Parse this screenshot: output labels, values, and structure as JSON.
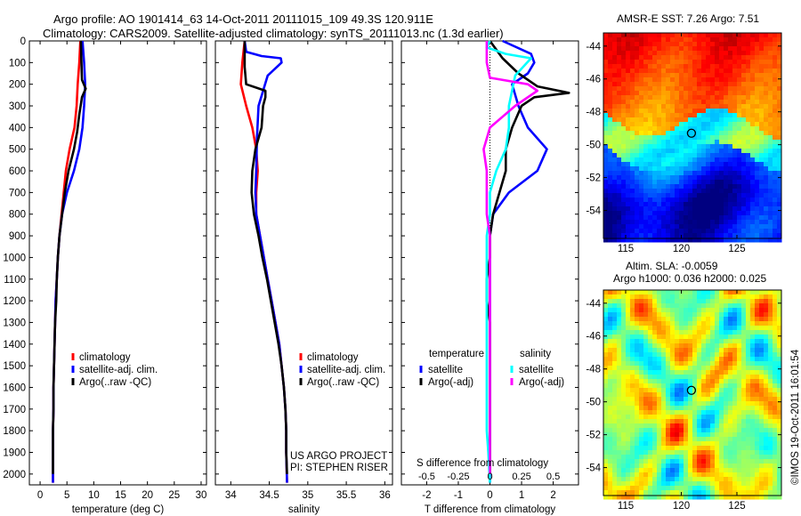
{
  "header": {
    "line1": "Argo profile: AO 1901414_63 14-Oct-2011 20111015_109 49.3S 120.911E",
    "line2": "Climatology: CARS2009. Satellite-adjusted climatology: synTS_20111013.nc (1.3d earlier)"
  },
  "map_top": {
    "title": "AMSR-E SST: 7.26 Argo: 7.51",
    "yticks": [
      "-44",
      "-46",
      "-48",
      "-50",
      "-52",
      "-54"
    ],
    "xticks": [
      "115",
      "120",
      "125"
    ]
  },
  "map_bottom": {
    "title_line1": "Altim. SLA: -0.0059",
    "title_line2": "Argo h1000: 0.036 h2000: 0.025",
    "yticks": [
      "-44",
      "-46",
      "-48",
      "-50",
      "-52",
      "-54"
    ],
    "xticks": [
      "115",
      "120",
      "125"
    ]
  },
  "side_stamp": "©IMOS 19-Oct-2011 16:01:54",
  "colors": {
    "climatology": "#ff0000",
    "satellite_adj": "#0000ff",
    "argo": "#000000",
    "satellite_s": "#00ffff",
    "argo_s": "#ff00ff"
  },
  "chart_data": [
    {
      "type": "line",
      "xlabel": "temperature (deg C)",
      "ylabel": "",
      "xlim": [
        -2,
        31
      ],
      "ylim": [
        2050,
        0
      ],
      "xticks": [
        0,
        5,
        10,
        15,
        20,
        25,
        30
      ],
      "yticks": [
        0,
        100,
        200,
        300,
        400,
        500,
        600,
        700,
        800,
        900,
        1000,
        1100,
        1200,
        1300,
        1400,
        1500,
        1600,
        1700,
        1800,
        1900,
        2000
      ],
      "legend": [
        "climatology",
        "satellite-adj. clim.",
        "Argo(..raw -QC)"
      ],
      "series": [
        {
          "name": "climatology",
          "color": "#ff0000",
          "points": [
            [
              7.5,
              0
            ],
            [
              7.3,
              100
            ],
            [
              7.0,
              200
            ],
            [
              6.8,
              300
            ],
            [
              6.4,
              400
            ],
            [
              5.5,
              500
            ],
            [
              4.8,
              600
            ],
            [
              4.4,
              700
            ],
            [
              4.0,
              800
            ],
            [
              3.6,
              900
            ],
            [
              3.3,
              1000
            ],
            [
              3.1,
              1100
            ],
            [
              2.9,
              1200
            ],
            [
              2.8,
              1300
            ],
            [
              2.7,
              1400
            ],
            [
              2.6,
              1500
            ],
            [
              2.5,
              1600
            ],
            [
              2.5,
              1700
            ],
            [
              2.4,
              1800
            ],
            [
              2.4,
              1900
            ],
            [
              2.4,
              2040
            ]
          ]
        },
        {
          "name": "satellite-adj. clim.",
          "color": "#0000ff",
          "points": [
            [
              7.9,
              0
            ],
            [
              8.2,
              100
            ],
            [
              8.4,
              200
            ],
            [
              8.2,
              300
            ],
            [
              7.9,
              400
            ],
            [
              7.3,
              500
            ],
            [
              6.3,
              600
            ],
            [
              5.0,
              700
            ],
            [
              4.1,
              800
            ],
            [
              3.6,
              900
            ],
            [
              3.3,
              1000
            ],
            [
              3.1,
              1100
            ],
            [
              2.9,
              1200
            ],
            [
              2.8,
              1300
            ],
            [
              2.7,
              1400
            ],
            [
              2.6,
              1500
            ],
            [
              2.5,
              1600
            ],
            [
              2.5,
              1700
            ],
            [
              2.4,
              1800
            ],
            [
              2.4,
              1900
            ],
            [
              2.4,
              2040
            ]
          ]
        },
        {
          "name": "Argo(..raw -QC)",
          "color": "#000000",
          "points": [
            [
              7.6,
              0
            ],
            [
              7.7,
              100
            ],
            [
              7.8,
              180
            ],
            [
              8.5,
              220
            ],
            [
              7.8,
              260
            ],
            [
              7.3,
              340
            ],
            [
              6.9,
              420
            ],
            [
              6.3,
              500
            ],
            [
              5.3,
              600
            ],
            [
              4.6,
              700
            ],
            [
              4.1,
              800
            ],
            [
              3.6,
              900
            ],
            [
              3.3,
              1000
            ],
            [
              3.1,
              1100
            ],
            [
              3.0,
              1200
            ],
            [
              2.8,
              1300
            ],
            [
              2.7,
              1400
            ],
            [
              2.6,
              1500
            ],
            [
              2.5,
              1600
            ],
            [
              2.5,
              1700
            ],
            [
              2.4,
              1800
            ],
            [
              2.4,
              1900
            ],
            [
              2.4,
              2000
            ]
          ]
        }
      ]
    },
    {
      "type": "line",
      "xlabel": "salinity",
      "ylabel": "",
      "xlim": [
        33.8,
        36.1
      ],
      "ylim": [
        2050,
        0
      ],
      "xticks": [
        34,
        34.5,
        35,
        35.5,
        36
      ],
      "xticklabels": [
        "34",
        "34.5",
        "35",
        "35.5",
        "36"
      ],
      "legend": [
        "climatology",
        "satellite-adj. clim.",
        "Argo(..raw -QC)"
      ],
      "annotation": [
        "US ARGO PROJECT",
        "PI: STEPHEN RISER"
      ],
      "series": [
        {
          "name": "climatology",
          "color": "#ff0000",
          "points": [
            [
              34.18,
              0
            ],
            [
              34.15,
              100
            ],
            [
              34.13,
              200
            ],
            [
              34.2,
              300
            ],
            [
              34.28,
              400
            ],
            [
              34.33,
              500
            ],
            [
              34.35,
              600
            ],
            [
              34.33,
              700
            ],
            [
              34.33,
              800
            ],
            [
              34.38,
              900
            ],
            [
              34.43,
              1000
            ],
            [
              34.48,
              1100
            ],
            [
              34.53,
              1200
            ],
            [
              34.58,
              1300
            ],
            [
              34.63,
              1400
            ],
            [
              34.66,
              1500
            ],
            [
              34.69,
              1600
            ],
            [
              34.71,
              1700
            ],
            [
              34.72,
              1800
            ],
            [
              34.72,
              1900
            ],
            [
              34.73,
              2040
            ]
          ]
        },
        {
          "name": "satellite-adj. clim.",
          "color": "#0000ff",
          "points": [
            [
              34.18,
              0
            ],
            [
              34.2,
              50
            ],
            [
              34.4,
              70
            ],
            [
              34.65,
              80
            ],
            [
              34.66,
              100
            ],
            [
              34.48,
              160
            ],
            [
              34.36,
              300
            ],
            [
              34.34,
              450
            ],
            [
              34.33,
              600
            ],
            [
              34.32,
              700
            ],
            [
              34.33,
              800
            ],
            [
              34.38,
              900
            ],
            [
              34.43,
              1000
            ],
            [
              34.48,
              1100
            ],
            [
              34.53,
              1200
            ],
            [
              34.58,
              1300
            ],
            [
              34.63,
              1400
            ],
            [
              34.66,
              1500
            ],
            [
              34.69,
              1600
            ],
            [
              34.71,
              1700
            ],
            [
              34.72,
              1800
            ],
            [
              34.72,
              1900
            ],
            [
              34.73,
              2040
            ]
          ]
        },
        {
          "name": "Argo(..raw -QC)",
          "color": "#000000",
          "points": [
            [
              34.18,
              0
            ],
            [
              34.18,
              120
            ],
            [
              34.2,
              200
            ],
            [
              34.45,
              230
            ],
            [
              34.45,
              260
            ],
            [
              34.42,
              300
            ],
            [
              34.4,
              400
            ],
            [
              34.32,
              500
            ],
            [
              34.28,
              600
            ],
            [
              34.27,
              700
            ],
            [
              34.3,
              800
            ],
            [
              34.36,
              900
            ],
            [
              34.41,
              1000
            ],
            [
              34.47,
              1100
            ],
            [
              34.52,
              1200
            ],
            [
              34.57,
              1300
            ],
            [
              34.62,
              1400
            ],
            [
              34.66,
              1500
            ],
            [
              34.69,
              1600
            ],
            [
              34.71,
              1700
            ],
            [
              34.72,
              1800
            ],
            [
              34.72,
              1900
            ],
            [
              34.73,
              2000
            ]
          ]
        }
      ]
    },
    {
      "type": "line",
      "title": "S difference from climatology",
      "xlabel": "T difference from climatology",
      "ylabel": "",
      "xlim": [
        -2.8,
        2.8
      ],
      "ylim": [
        2050,
        0
      ],
      "xticks": [
        -2,
        -1,
        0,
        1,
        2
      ],
      "top_xticks": [
        -0.5,
        -0.25,
        0,
        0.25,
        0.5
      ],
      "top_xlim": [
        -0.7,
        0.7
      ],
      "zero_line": "dotted",
      "legend_groups": [
        {
          "title": "temperature",
          "entries": [
            "satellite",
            "Argo(-adj)"
          ]
        },
        {
          "title": "salinity",
          "entries": [
            "satellite",
            "Argo(-adj)"
          ]
        }
      ],
      "series": [
        {
          "name": "satellite",
          "group": "temperature",
          "color": "#0000ff",
          "points": [
            [
              0.4,
              0
            ],
            [
              1.3,
              60
            ],
            [
              1.4,
              100
            ],
            [
              1.2,
              150
            ],
            [
              0.7,
              200
            ],
            [
              0.9,
              300
            ],
            [
              1.2,
              400
            ],
            [
              1.8,
              500
            ],
            [
              1.5,
              600
            ],
            [
              0.6,
              700
            ],
            [
              0.1,
              800
            ],
            [
              0,
              900
            ],
            [
              0,
              1000
            ],
            [
              0,
              1100
            ],
            [
              0,
              1200
            ],
            [
              0,
              1300
            ],
            [
              0,
              1400
            ],
            [
              0,
              1500
            ],
            [
              0,
              1600
            ],
            [
              0,
              1700
            ],
            [
              0,
              1800
            ],
            [
              0,
              1900
            ],
            [
              0,
              2040
            ]
          ]
        },
        {
          "name": "Argo(-adj)",
          "group": "temperature",
          "color": "#000000",
          "points": [
            [
              0,
              0
            ],
            [
              0.4,
              80
            ],
            [
              0.9,
              150
            ],
            [
              1.5,
              210
            ],
            [
              2.5,
              240
            ],
            [
              1.4,
              260
            ],
            [
              1.0,
              300
            ],
            [
              0.7,
              400
            ],
            [
              0.5,
              500
            ],
            [
              0.5,
              600
            ],
            [
              0.3,
              700
            ],
            [
              0.1,
              800
            ],
            [
              0,
              900
            ],
            [
              0,
              1000
            ],
            [
              -0.1,
              1100
            ],
            [
              -0.1,
              1200
            ],
            [
              0,
              1300
            ],
            [
              0,
              1400
            ],
            [
              0,
              1500
            ],
            [
              0,
              1600
            ],
            [
              0,
              1700
            ],
            [
              0,
              1800
            ],
            [
              0,
              1900
            ],
            [
              0,
              2000
            ]
          ]
        },
        {
          "name": "satellite",
          "group": "salinity",
          "color": "#00ffff",
          "points": [
            [
              0,
              0
            ],
            [
              -0.1,
              30
            ],
            [
              0.5,
              60
            ],
            [
              1.3,
              80
            ],
            [
              0.8,
              160
            ],
            [
              0.6,
              300
            ],
            [
              0.6,
              400
            ],
            [
              0.5,
              500
            ],
            [
              0.2,
              600
            ],
            [
              0,
              700
            ],
            [
              0,
              800
            ],
            [
              -0.1,
              900
            ],
            [
              -0.1,
              1000
            ],
            [
              -0.1,
              1100
            ],
            [
              -0.1,
              1200
            ],
            [
              -0.1,
              1300
            ],
            [
              -0.1,
              1400
            ],
            [
              -0.1,
              1500
            ],
            [
              -0.1,
              1600
            ],
            [
              -0.1,
              1700
            ],
            [
              -0.1,
              1800
            ],
            [
              -0.05,
              1900
            ],
            [
              0,
              2040
            ]
          ]
        },
        {
          "name": "Argo(-adj)",
          "group": "salinity",
          "color": "#ff00ff",
          "points": [
            [
              -0.1,
              0
            ],
            [
              -0.1,
              100
            ],
            [
              0,
              170
            ],
            [
              1.2,
              200
            ],
            [
              1.5,
              230
            ],
            [
              0.8,
              300
            ],
            [
              0,
              400
            ],
            [
              -0.2,
              500
            ],
            [
              -0.1,
              600
            ],
            [
              -0.1,
              700
            ],
            [
              -0.1,
              800
            ],
            [
              0,
              900
            ],
            [
              0,
              1000
            ],
            [
              0,
              1100
            ],
            [
              0,
              1200
            ],
            [
              0,
              1300
            ],
            [
              0,
              1400
            ],
            [
              0,
              1500
            ],
            [
              0,
              1600
            ],
            [
              0,
              1700
            ],
            [
              0,
              1800
            ],
            [
              0,
              1900
            ],
            [
              0,
              2000
            ]
          ]
        }
      ]
    },
    {
      "type": "heatmap",
      "title": "AMSR-E SST: 7.26 Argo: 7.51",
      "xlim": [
        113,
        129
      ],
      "ylim": [
        -55.7,
        -43.2
      ],
      "marker": [
        120.911,
        -49.3
      ]
    },
    {
      "type": "heatmap",
      "title": "Altim. SLA: -0.0059",
      "xlim": [
        113,
        129
      ],
      "ylim": [
        -55.7,
        -43.2
      ],
      "marker": [
        120.911,
        -49.3
      ]
    }
  ]
}
